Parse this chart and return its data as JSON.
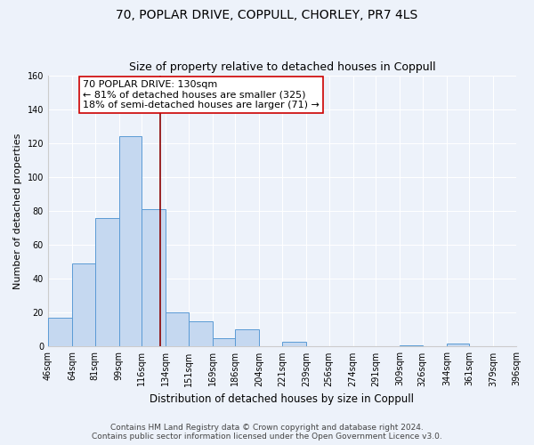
{
  "title": "70, POPLAR DRIVE, COPPULL, CHORLEY, PR7 4LS",
  "subtitle": "Size of property relative to detached houses in Coppull",
  "xlabel": "Distribution of detached houses by size in Coppull",
  "ylabel": "Number of detached properties",
  "bin_labels": [
    "46sqm",
    "64sqm",
    "81sqm",
    "99sqm",
    "116sqm",
    "134sqm",
    "151sqm",
    "169sqm",
    "186sqm",
    "204sqm",
    "221sqm",
    "239sqm",
    "256sqm",
    "274sqm",
    "291sqm",
    "309sqm",
    "326sqm",
    "344sqm",
    "361sqm",
    "379sqm",
    "396sqm"
  ],
  "bin_edges": [
    46,
    64,
    81,
    99,
    116,
    134,
    151,
    169,
    186,
    204,
    221,
    239,
    256,
    274,
    291,
    309,
    326,
    344,
    361,
    379,
    396
  ],
  "bar_heights": [
    17,
    49,
    76,
    124,
    81,
    20,
    15,
    5,
    10,
    0,
    3,
    0,
    0,
    0,
    0,
    1,
    0,
    2,
    0,
    0
  ],
  "bar_color": "#c5d8f0",
  "bar_edge_color": "#5b9bd5",
  "vline_x": 130,
  "vline_color": "#8b0000",
  "annotation_line1": "70 POPLAR DRIVE: 130sqm",
  "annotation_line2": "← 81% of detached houses are smaller (325)",
  "annotation_line3": "18% of semi-detached houses are larger (71) →",
  "annotation_box_color": "#ffffff",
  "annotation_box_edge_color": "#cc0000",
  "ylim": [
    0,
    160
  ],
  "yticks": [
    0,
    20,
    40,
    60,
    80,
    100,
    120,
    140,
    160
  ],
  "background_color": "#edf2fa",
  "footer_line1": "Contains HM Land Registry data © Crown copyright and database right 2024.",
  "footer_line2": "Contains public sector information licensed under the Open Government Licence v3.0.",
  "title_fontsize": 10,
  "subtitle_fontsize": 9,
  "xlabel_fontsize": 8.5,
  "ylabel_fontsize": 8,
  "tick_fontsize": 7,
  "annotation_fontsize": 8,
  "footer_fontsize": 6.5,
  "grid_color": "#ffffff",
  "spine_color": "#cccccc"
}
